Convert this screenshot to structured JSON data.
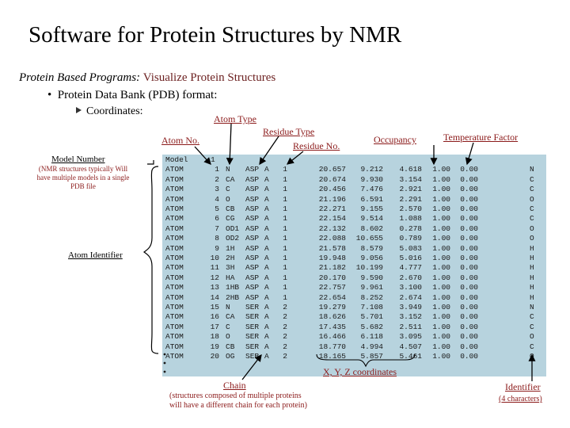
{
  "slide": {
    "title": "Software for Protein Structures by NMR",
    "subtitle_italic": "Protein Based Programs:",
    "subtitle_accent": "Visualize Protein Structures",
    "bullet_text": "Protein Data Bank (PDB) format:",
    "sub_bullet_text": "Coordinates:"
  },
  "labels": {
    "atom_type": "Atom Type",
    "residue_type": "Residue Type",
    "atom_no": "Atom No.",
    "residue_no": "Residue No.",
    "occupancy": "Occupancy",
    "temperature_factor": "Temperature Factor",
    "model_number": "Model Number",
    "model_note": "(NMR structures typically Will have multiple models in a single PDB file",
    "atom_identifier": "Atom Identifier",
    "xyz": "X, Y, Z coordinates",
    "chain": "Chain",
    "chain_note": "(structures composed of multiple proteins will have a different chain for each protein)",
    "identifier": "Identifier",
    "identifier_note": "(4 characters)"
  },
  "pdb": {
    "model_line": "Model     1",
    "records": [
      [
        "ATOM",
        "1",
        "N",
        "ASP",
        "A",
        "1",
        "20.657",
        "9.212",
        "4.618",
        "1.00",
        "0.00",
        "N"
      ],
      [
        "ATOM",
        "2",
        "CA",
        "ASP",
        "A",
        "1",
        "20.674",
        "9.930",
        "3.154",
        "1.00",
        "0.00",
        "C"
      ],
      [
        "ATOM",
        "3",
        "C",
        "ASP",
        "A",
        "1",
        "20.456",
        "7.476",
        "2.921",
        "1.00",
        "0.00",
        "C"
      ],
      [
        "ATOM",
        "4",
        "O",
        "ASP",
        "A",
        "1",
        "21.196",
        "6.591",
        "2.291",
        "1.00",
        "0.00",
        "O"
      ],
      [
        "ATOM",
        "5",
        "CB",
        "ASP",
        "A",
        "1",
        "22.271",
        "9.155",
        "2.570",
        "1.00",
        "0.00",
        "C"
      ],
      [
        "ATOM",
        "6",
        "CG",
        "ASP",
        "A",
        "1",
        "22.154",
        "9.514",
        "1.088",
        "1.00",
        "0.00",
        "C"
      ],
      [
        "ATOM",
        "7",
        "OD1",
        "ASP",
        "A",
        "1",
        "22.132",
        "8.602",
        "0.278",
        "1.00",
        "0.00",
        "O"
      ],
      [
        "ATOM",
        "8",
        "OD2",
        "ASP",
        "A",
        "1",
        "22.088",
        "10.655",
        "0.789",
        "1.00",
        "0.00",
        "O"
      ],
      [
        "ATOM",
        "9",
        "1H",
        "ASP",
        "A",
        "1",
        "21.578",
        "8.579",
        "5.083",
        "1.00",
        "0.00",
        "H"
      ],
      [
        "ATOM",
        "10",
        "2H",
        "ASP",
        "A",
        "1",
        "19.948",
        "9.056",
        "5.016",
        "1.00",
        "0.00",
        "H"
      ],
      [
        "ATOM",
        "11",
        "3H",
        "ASP",
        "A",
        "1",
        "21.182",
        "10.199",
        "4.777",
        "1.00",
        "0.00",
        "H"
      ],
      [
        "ATOM",
        "12",
        "HA",
        "ASP",
        "A",
        "1",
        "20.170",
        "9.590",
        "2.670",
        "1.00",
        "0.00",
        "H"
      ],
      [
        "ATOM",
        "13",
        "1HB",
        "ASP",
        "A",
        "1",
        "22.757",
        "9.961",
        "3.100",
        "1.00",
        "0.00",
        "H"
      ],
      [
        "ATOM",
        "14",
        "2HB",
        "ASP",
        "A",
        "1",
        "22.654",
        "8.252",
        "2.674",
        "1.00",
        "0.00",
        "H"
      ],
      [
        "ATOM",
        "15",
        "N",
        "SER",
        "A",
        "2",
        "19.279",
        "7.108",
        "3.949",
        "1.00",
        "0.00",
        "N"
      ],
      [
        "ATOM",
        "16",
        "CA",
        "SER",
        "A",
        "2",
        "18.626",
        "5.701",
        "3.152",
        "1.00",
        "0.00",
        "C"
      ],
      [
        "ATOM",
        "17",
        "C",
        "SER",
        "A",
        "2",
        "17.435",
        "5.682",
        "2.511",
        "1.00",
        "0.00",
        "C"
      ],
      [
        "ATOM",
        "18",
        "O",
        "SER",
        "A",
        "2",
        "16.466",
        "6.118",
        "3.095",
        "1.00",
        "0.00",
        "O"
      ],
      [
        "ATOM",
        "19",
        "CB",
        "SER",
        "A",
        "2",
        "18.770",
        "4.994",
        "4.507",
        "1.00",
        "0.00",
        "C"
      ],
      [
        "ATOM",
        "20",
        "OG",
        "SER",
        "A",
        "2",
        "18.165",
        "5.857",
        "5.461",
        "1.00",
        "0.00",
        "O"
      ]
    ]
  }
}
